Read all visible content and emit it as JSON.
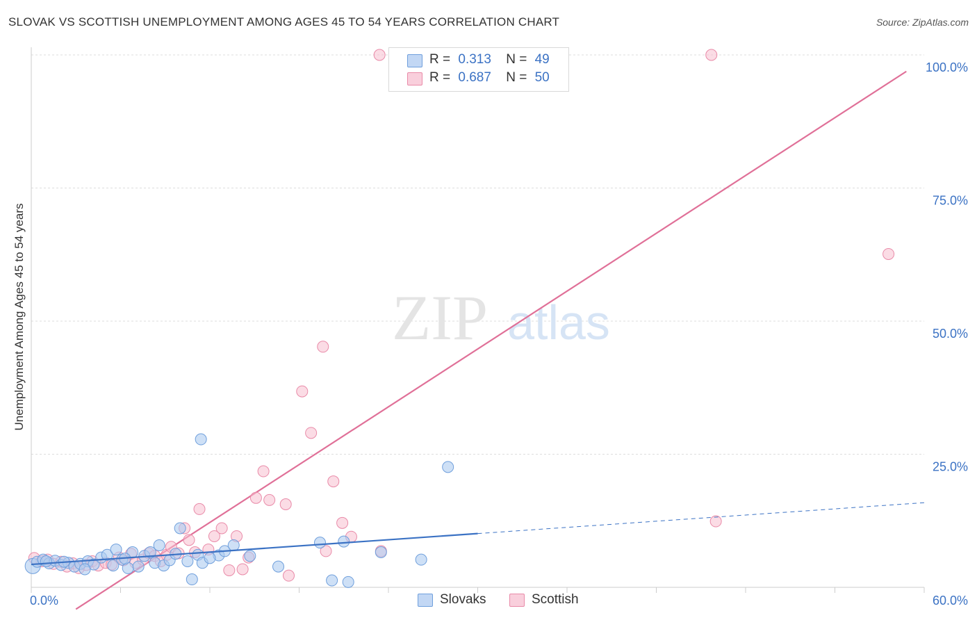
{
  "title": "SLOVAK VS SCOTTISH UNEMPLOYMENT AMONG AGES 45 TO 54 YEARS CORRELATION CHART",
  "source": "Source: ZipAtlas.com",
  "watermark": {
    "zip": "ZIP",
    "atlas": "atlas"
  },
  "colors": {
    "slovak_fill": "#aecbf0",
    "slovak_stroke": "#6f9fdc",
    "slovak_line": "#3b72c4",
    "scottish_fill": "#f7bfd0",
    "scottish_stroke": "#e98aa8",
    "scottish_line": "#e07098",
    "tick_text": "#3b72c4",
    "grid": "#dddddd"
  },
  "legend": {
    "rows": [
      {
        "r_label": "R =",
        "r_value": "0.313",
        "n_label": "N =",
        "n_value": "49"
      },
      {
        "r_label": "R =",
        "r_value": "0.687",
        "n_label": "N =",
        "n_value": "50"
      }
    ]
  },
  "bottom_legend": {
    "slovaks": "Slovaks",
    "scottish": "Scottish"
  },
  "chart_data": {
    "type": "scatter",
    "ylabel": "Unemployment Among Ages 45 to 54 years",
    "xlim": [
      0,
      60
    ],
    "ylim": [
      0,
      100
    ],
    "x_tick_labels": [
      "0.0%",
      "60.0%"
    ],
    "y_ticks": [
      25,
      50,
      75,
      100
    ],
    "y_tick_labels": [
      "25.0%",
      "50.0%",
      "75.0%",
      "100.0%"
    ],
    "series": [
      {
        "name": "Slovaks",
        "points": [
          [
            0.1,
            4.0
          ],
          [
            0.4,
            4.8
          ],
          [
            0.8,
            5.2
          ],
          [
            1.2,
            4.5
          ],
          [
            1.6,
            5.0
          ],
          [
            2.0,
            4.2
          ],
          [
            2.5,
            4.6
          ],
          [
            2.9,
            3.9
          ],
          [
            3.3,
            4.4
          ],
          [
            3.8,
            4.9
          ],
          [
            4.2,
            4.3
          ],
          [
            4.7,
            5.6
          ],
          [
            5.1,
            6.1
          ],
          [
            5.5,
            4.1
          ],
          [
            5.7,
            7.1
          ],
          [
            6.1,
            5.2
          ],
          [
            6.5,
            3.6
          ],
          [
            6.8,
            6.6
          ],
          [
            7.2,
            3.9
          ],
          [
            7.6,
            5.9
          ],
          [
            8.0,
            6.6
          ],
          [
            8.3,
            4.6
          ],
          [
            8.6,
            7.9
          ],
          [
            8.9,
            4.1
          ],
          [
            9.3,
            5.1
          ],
          [
            9.7,
            6.3
          ],
          [
            10.0,
            11.1
          ],
          [
            10.5,
            4.9
          ],
          [
            10.8,
            1.5
          ],
          [
            11.2,
            6.1
          ],
          [
            11.4,
            27.8
          ],
          [
            11.5,
            4.6
          ],
          [
            12.6,
            6.0
          ],
          [
            13.0,
            6.8
          ],
          [
            13.6,
            7.9
          ],
          [
            14.7,
            5.9
          ],
          [
            16.6,
            3.9
          ],
          [
            19.4,
            8.4
          ],
          [
            20.2,
            1.3
          ],
          [
            21.0,
            8.6
          ],
          [
            21.3,
            1.0
          ],
          [
            23.5,
            6.6
          ],
          [
            26.2,
            5.2
          ],
          [
            28.0,
            22.6
          ],
          [
            2.2,
            4.8
          ],
          [
            3.6,
            3.4
          ],
          [
            1.0,
            4.9
          ],
          [
            6.3,
            5.4
          ],
          [
            12.0,
            5.5
          ]
        ],
        "trend": {
          "x": [
            0,
            30
          ],
          "y": [
            4.3,
            10.1
          ],
          "dashed_to_x": 60,
          "dashed_y": 15.9
        }
      },
      {
        "name": "Scottish",
        "points": [
          [
            0.2,
            5.5
          ],
          [
            0.7,
            4.9
          ],
          [
            1.1,
            5.2
          ],
          [
            1.5,
            4.4
          ],
          [
            2.0,
            4.8
          ],
          [
            2.4,
            3.9
          ],
          [
            2.8,
            4.5
          ],
          [
            3.2,
            3.6
          ],
          [
            3.7,
            4.2
          ],
          [
            4.1,
            4.9
          ],
          [
            4.5,
            4.1
          ],
          [
            5.0,
            4.6
          ],
          [
            5.4,
            4.3
          ],
          [
            5.9,
            5.6
          ],
          [
            6.2,
            5.1
          ],
          [
            6.7,
            6.3
          ],
          [
            7.0,
            4.6
          ],
          [
            7.5,
            5.2
          ],
          [
            7.9,
            6.4
          ],
          [
            8.3,
            5.9
          ],
          [
            8.7,
            4.9
          ],
          [
            9.1,
            6.1
          ],
          [
            9.4,
            7.6
          ],
          [
            9.9,
            6.4
          ],
          [
            10.3,
            11.1
          ],
          [
            10.6,
            8.9
          ],
          [
            11.0,
            6.6
          ],
          [
            11.3,
            14.7
          ],
          [
            11.9,
            7.1
          ],
          [
            12.3,
            9.6
          ],
          [
            12.8,
            11.1
          ],
          [
            13.3,
            3.2
          ],
          [
            13.8,
            9.6
          ],
          [
            14.2,
            3.4
          ],
          [
            14.6,
            5.6
          ],
          [
            15.1,
            16.8
          ],
          [
            15.6,
            21.8
          ],
          [
            16.0,
            16.4
          ],
          [
            17.1,
            15.6
          ],
          [
            17.3,
            2.2
          ],
          [
            18.2,
            36.8
          ],
          [
            18.8,
            29.0
          ],
          [
            19.6,
            45.2
          ],
          [
            19.8,
            6.8
          ],
          [
            20.3,
            19.9
          ],
          [
            20.9,
            12.1
          ],
          [
            21.5,
            9.5
          ],
          [
            23.5,
            6.8
          ],
          [
            46.0,
            12.4
          ],
          [
            57.6,
            62.6
          ]
        ],
        "top_points": [
          [
            23.4,
            100.0
          ],
          [
            28.4,
            100.0
          ],
          [
            45.7,
            100.0
          ]
        ],
        "trend": {
          "x": [
            3.0,
            58.8
          ],
          "y": [
            -4.1,
            96.9
          ]
        }
      }
    ]
  }
}
